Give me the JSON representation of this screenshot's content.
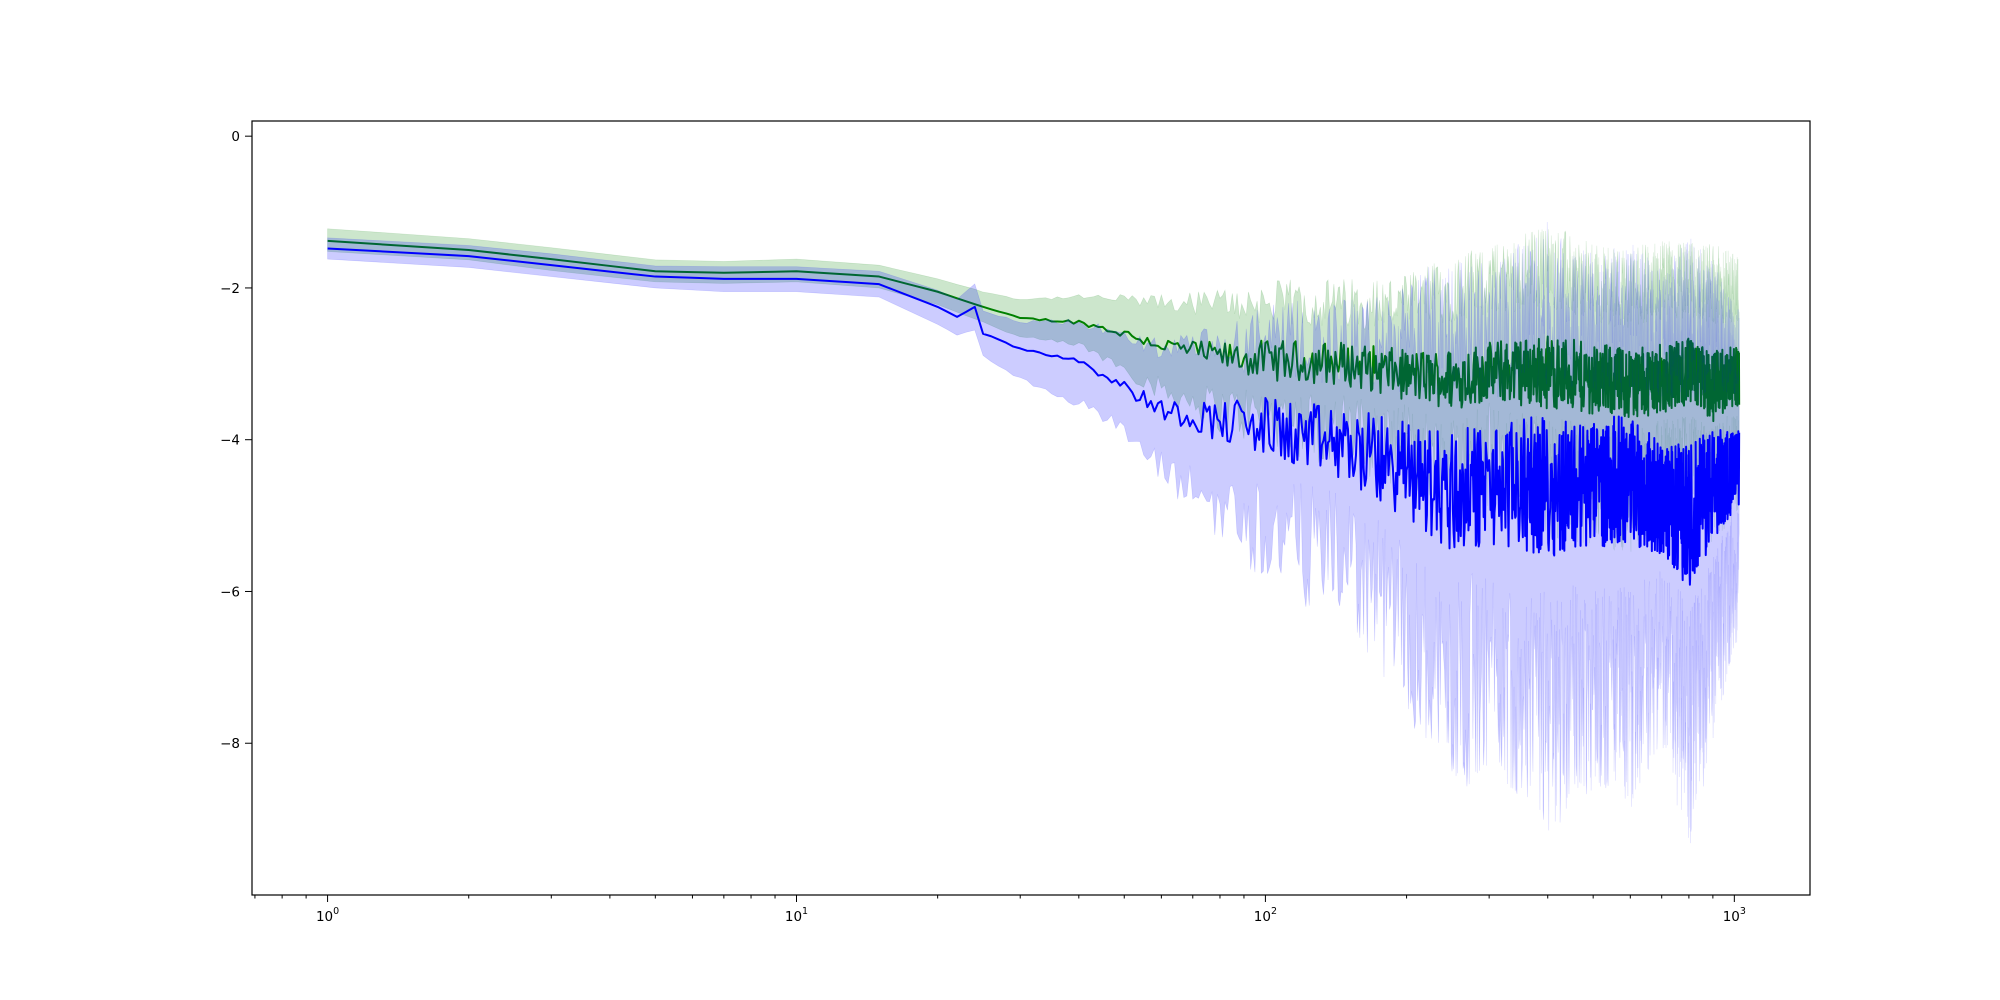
{
  "chart_data": {
    "type": "line",
    "title": "",
    "xlabel": "",
    "ylabel": "",
    "xscale": "log",
    "xlim": [
      0.69,
      1450
    ],
    "ylim": [
      -10,
      0.2
    ],
    "grid": false,
    "legend": "none",
    "x_ticks": [
      {
        "base": "10",
        "exp": "0",
        "value": 1
      },
      {
        "base": "10",
        "exp": "1",
        "value": 10
      },
      {
        "base": "10",
        "exp": "2",
        "value": 100
      },
      {
        "base": "10",
        "exp": "3",
        "value": 1000
      }
    ],
    "y_ticks": [
      {
        "label": "0",
        "value": 0
      },
      {
        "label": "−2",
        "value": -2
      },
      {
        "label": "−4",
        "value": -4
      },
      {
        "label": "−6",
        "value": -6
      },
      {
        "label": "−8",
        "value": -8
      }
    ],
    "series": [
      {
        "color": "#008000",
        "band_color": "#008000",
        "band_opacity": 0.2,
        "x": [
          1,
          2,
          3,
          5,
          7,
          10,
          15,
          20,
          25,
          30,
          40,
          50,
          60,
          80,
          100,
          150,
          200,
          250,
          300,
          400,
          500,
          600,
          700,
          800,
          900,
          1000
        ],
        "mean": [
          -1.38,
          -1.5,
          -1.62,
          -1.78,
          -1.8,
          -1.78,
          -1.85,
          -2.05,
          -2.25,
          -2.4,
          -2.45,
          -2.6,
          -2.75,
          -2.9,
          -2.95,
          -3.0,
          -3.15,
          -3.2,
          -3.1,
          -3.1,
          -3.2,
          -3.25,
          -3.2,
          -3.1,
          -3.3,
          -3.15
        ],
        "lower": [
          -1.52,
          -1.63,
          -1.77,
          -1.92,
          -1.94,
          -1.92,
          -2.0,
          -2.22,
          -2.45,
          -2.65,
          -2.75,
          -3.05,
          -3.35,
          -3.6,
          -3.7,
          -3.9,
          -4.1,
          -4.3,
          -4.2,
          -4.5,
          -4.6,
          -4.7,
          -4.5,
          -4.4,
          -4.6,
          -4.3
        ],
        "upper": [
          -1.22,
          -1.35,
          -1.47,
          -1.63,
          -1.65,
          -1.62,
          -1.7,
          -1.88,
          -2.05,
          -2.15,
          -2.12,
          -2.15,
          -2.2,
          -2.2,
          -2.2,
          -2.2,
          -2.2,
          -2.0,
          -1.9,
          -1.7,
          -1.95,
          -2.0,
          -1.9,
          -1.9,
          -1.95,
          -2.0
        ]
      },
      {
        "color": "#0000ff",
        "band_color": "#0000ff",
        "band_opacity": 0.2,
        "x": [
          1,
          2,
          3,
          5,
          7,
          10,
          15,
          20,
          22,
          24,
          25,
          30,
          40,
          50,
          60,
          80,
          100,
          150,
          200,
          250,
          300,
          400,
          500,
          600,
          700,
          800,
          900,
          1000
        ],
        "mean": [
          -1.48,
          -1.58,
          -1.7,
          -1.85,
          -1.88,
          -1.88,
          -1.95,
          -2.25,
          -2.38,
          -2.25,
          -2.6,
          -2.8,
          -2.95,
          -3.3,
          -3.6,
          -3.75,
          -3.85,
          -4.1,
          -4.4,
          -4.7,
          -4.6,
          -4.6,
          -4.6,
          -4.5,
          -4.8,
          -5.0,
          -4.6,
          -4.4
        ],
        "lower": [
          -1.62,
          -1.73,
          -1.85,
          -2.0,
          -2.05,
          -2.05,
          -2.12,
          -2.48,
          -2.62,
          -2.55,
          -2.9,
          -3.2,
          -3.5,
          -3.9,
          -4.4,
          -4.9,
          -5.2,
          -5.6,
          -6.5,
          -7.3,
          -7.0,
          -7.6,
          -7.2,
          -7.4,
          -6.8,
          -7.8,
          -6.8,
          -5.8
        ],
        "upper": [
          -1.34,
          -1.44,
          -1.55,
          -1.71,
          -1.72,
          -1.72,
          -1.78,
          -2.03,
          -2.15,
          -1.95,
          -2.3,
          -2.45,
          -2.45,
          -2.65,
          -2.8,
          -2.8,
          -2.7,
          -2.7,
          -2.7,
          -2.4,
          -2.6,
          -2.2,
          -2.5,
          -2.4,
          -2.6,
          -2.4,
          -2.5,
          -2.8
        ]
      }
    ]
  }
}
